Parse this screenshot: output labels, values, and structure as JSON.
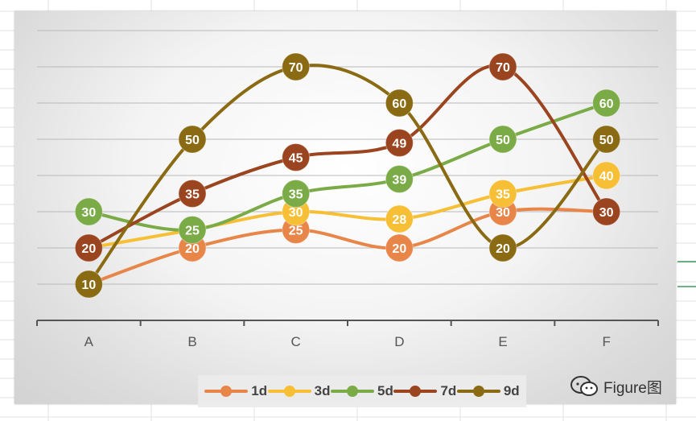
{
  "chart_data": {
    "type": "line",
    "smooth": true,
    "categories": [
      "A",
      "B",
      "C",
      "D",
      "E",
      "F"
    ],
    "ylim": [
      0,
      80
    ],
    "ytick_step": 10,
    "grid": true,
    "data_labels": true,
    "legend_position": "bottom",
    "series": [
      {
        "name": "1d",
        "color": "#e8864a",
        "values": [
          10,
          20,
          25,
          20,
          30,
          30
        ],
        "labels": [
          null,
          "20",
          "25",
          "20",
          "30",
          null
        ]
      },
      {
        "name": "3d",
        "color": "#f6bf36",
        "values": [
          20,
          25,
          30,
          28,
          35,
          40
        ],
        "labels": [
          null,
          null,
          "30",
          "28",
          "35",
          "40"
        ]
      },
      {
        "name": "5d",
        "color": "#7bab46",
        "values": [
          30,
          25,
          35,
          39,
          50,
          60
        ],
        "labels": [
          "30",
          "25",
          "35",
          "39",
          "50",
          "60"
        ]
      },
      {
        "name": "7d",
        "color": "#9b4520",
        "values": [
          20,
          35,
          45,
          49,
          70,
          30
        ],
        "labels": [
          "20",
          "35",
          "45",
          "49",
          "70",
          "30"
        ]
      },
      {
        "name": "9d",
        "color": "#8a6a12",
        "values": [
          10,
          50,
          70,
          60,
          20,
          50
        ],
        "labels": [
          "10",
          "50",
          "70",
          "60",
          "20",
          "50"
        ]
      }
    ]
  },
  "watermark": {
    "text": "Figure图",
    "icon": "wechat-icon"
  }
}
